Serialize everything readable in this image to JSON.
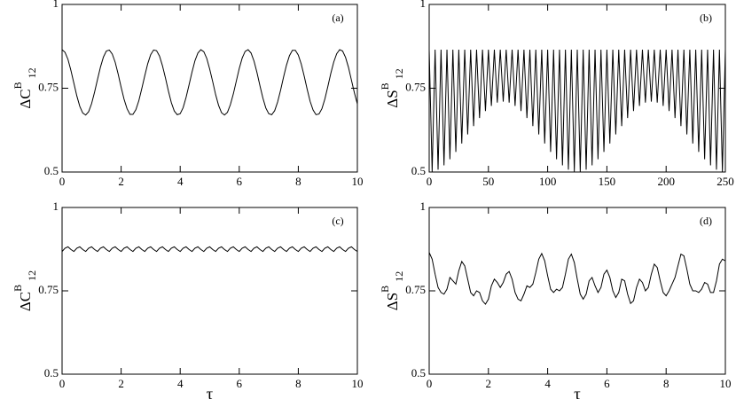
{
  "chart_data": [
    {
      "type": "line",
      "annotation": "(a)",
      "ylabel": {
        "base": "ΔC",
        "sup": "B",
        "sub": "12"
      },
      "color": "#000000",
      "xlim": [
        0,
        10
      ],
      "ylim": [
        0.5,
        1
      ],
      "xticks": [
        0,
        2,
        4,
        6,
        8,
        10
      ],
      "yticks": [
        0.5,
        0.75,
        1
      ],
      "x": [
        0,
        0.1,
        0.2,
        0.3,
        0.4,
        0.5,
        0.6,
        0.7,
        0.8,
        0.9,
        1,
        1.1,
        1.2,
        1.3,
        1.4,
        1.5,
        1.6,
        1.7,
        1.8,
        1.9,
        2,
        2.1,
        2.2,
        2.3,
        2.4,
        2.5,
        2.6,
        2.7,
        2.8,
        2.9,
        3,
        3.1,
        3.2,
        3.3,
        3.4,
        3.5,
        3.6,
        3.7,
        3.8,
        3.9,
        4,
        4.1,
        4.2,
        4.3,
        4.4,
        4.5,
        4.6,
        4.7,
        4.8,
        4.9,
        5,
        5.1,
        5.2,
        5.3,
        5.4,
        5.5,
        5.6,
        5.7,
        5.8,
        5.9,
        6,
        6.1,
        6.2,
        6.3,
        6.4,
        6.5,
        6.6,
        6.7,
        6.8,
        6.9,
        7,
        7.1,
        7.2,
        7.3,
        7.4,
        7.5,
        7.6,
        7.7,
        7.8,
        7.9,
        8,
        8.1,
        8.2,
        8.3,
        8.4,
        8.5,
        8.6,
        8.7,
        8.8,
        8.9,
        9,
        9.1,
        9.2,
        9.3,
        9.4,
        9.5,
        9.6,
        9.7,
        9.8,
        9.9,
        10
      ],
      "values": [
        0.865,
        0.857,
        0.836,
        0.803,
        0.765,
        0.727,
        0.696,
        0.676,
        0.67,
        0.68,
        0.704,
        0.738,
        0.776,
        0.813,
        0.843,
        0.861,
        0.864,
        0.852,
        0.827,
        0.792,
        0.753,
        0.717,
        0.689,
        0.672,
        0.672,
        0.686,
        0.713,
        0.749,
        0.787,
        0.823,
        0.85,
        0.864,
        0.862,
        0.846,
        0.817,
        0.781,
        0.742,
        0.707,
        0.682,
        0.671,
        0.674,
        0.692,
        0.723,
        0.76,
        0.798,
        0.832,
        0.855,
        0.865,
        0.859,
        0.839,
        0.807,
        0.77,
        0.731,
        0.699,
        0.677,
        0.67,
        0.678,
        0.701,
        0.733,
        0.771,
        0.809,
        0.84,
        0.86,
        0.865,
        0.855,
        0.831,
        0.797,
        0.758,
        0.721,
        0.691,
        0.674,
        0.671,
        0.683,
        0.709,
        0.744,
        0.783,
        0.819,
        0.847,
        0.863,
        0.863,
        0.849,
        0.822,
        0.786,
        0.747,
        0.711,
        0.685,
        0.671,
        0.673,
        0.689,
        0.718,
        0.755,
        0.794,
        0.828,
        0.853,
        0.865,
        0.861,
        0.842,
        0.812,
        0.774,
        0.736,
        0.703
      ]
    },
    {
      "type": "line",
      "annotation": "(b)",
      "ylabel": {
        "base": "ΔS",
        "sup": "B",
        "sub": "12"
      },
      "color": "#000000",
      "xlim": [
        0,
        250
      ],
      "ylim": [
        0.5,
        1
      ],
      "xticks": [
        0,
        50,
        100,
        150,
        200,
        250
      ],
      "yticks": [
        0.5,
        0.75,
        1
      ],
      "x": [
        0,
        2.5,
        5,
        7.5,
        10,
        12.5,
        15,
        17.5,
        20,
        22.5,
        25,
        27.5,
        30,
        32.5,
        35,
        37.5,
        40,
        42.5,
        45,
        47.5,
        50,
        52.5,
        55,
        57.5,
        60,
        62.5,
        65,
        67.5,
        70,
        72.5,
        75,
        77.5,
        80,
        82.5,
        85,
        87.5,
        90,
        92.5,
        95,
        97.5,
        100,
        102.5,
        105,
        107.5,
        110,
        112.5,
        115,
        117.5,
        120,
        122.5,
        125,
        127.5,
        130,
        132.5,
        135,
        137.5,
        140,
        142.5,
        145,
        147.5,
        150,
        152.5,
        155,
        157.5,
        160,
        162.5,
        165,
        167.5,
        170,
        172.5,
        175,
        177.5,
        180,
        182.5,
        185,
        187.5,
        190,
        192.5,
        195,
        197.5,
        200,
        202.5,
        205,
        207.5,
        210,
        212.5,
        215,
        217.5,
        220,
        222.5,
        225,
        227.5,
        230,
        232.5,
        235,
        237.5,
        240,
        242.5,
        245,
        247.5,
        250
      ],
      "values": [
        0.865,
        0.501,
        0.865,
        0.507,
        0.865,
        0.52,
        0.865,
        0.538,
        0.865,
        0.56,
        0.865,
        0.585,
        0.865,
        0.612,
        0.865,
        0.637,
        0.865,
        0.661,
        0.865,
        0.682,
        0.865,
        0.697,
        0.865,
        0.707,
        0.865,
        0.71,
        0.865,
        0.707,
        0.865,
        0.697,
        0.865,
        0.682,
        0.865,
        0.661,
        0.865,
        0.637,
        0.865,
        0.612,
        0.865,
        0.585,
        0.865,
        0.56,
        0.865,
        0.538,
        0.865,
        0.52,
        0.865,
        0.507,
        0.865,
        0.501,
        0.865,
        0.501,
        0.865,
        0.507,
        0.865,
        0.52,
        0.865,
        0.538,
        0.865,
        0.56,
        0.865,
        0.585,
        0.865,
        0.612,
        0.865,
        0.637,
        0.865,
        0.661,
        0.865,
        0.682,
        0.865,
        0.697,
        0.865,
        0.707,
        0.865,
        0.71,
        0.865,
        0.707,
        0.865,
        0.697,
        0.865,
        0.682,
        0.865,
        0.661,
        0.865,
        0.637,
        0.865,
        0.612,
        0.865,
        0.585,
        0.865,
        0.56,
        0.865,
        0.538,
        0.865,
        0.52,
        0.865,
        0.507,
        0.865,
        0.501,
        0.865
      ]
    },
    {
      "type": "line",
      "annotation": "(c)",
      "ylabel": {
        "base": "ΔC",
        "sup": "B",
        "sub": "12"
      },
      "xlabel": "τ",
      "color": "#000000",
      "xlim": [
        0,
        10
      ],
      "ylim": [
        0.5,
        1
      ],
      "xticks": [
        0,
        2,
        4,
        6,
        8,
        10
      ],
      "yticks": [
        0.5,
        0.75,
        1
      ],
      "x": [
        0,
        0.1,
        0.2,
        0.3,
        0.4,
        0.5,
        0.6,
        0.7,
        0.8,
        0.9,
        1,
        1.1,
        1.2,
        1.3,
        1.4,
        1.5,
        1.6,
        1.7,
        1.8,
        1.9,
        2,
        2.1,
        2.2,
        2.3,
        2.4,
        2.5,
        2.6,
        2.7,
        2.8,
        2.9,
        3,
        3.1,
        3.2,
        3.3,
        3.4,
        3.5,
        3.6,
        3.7,
        3.8,
        3.9,
        4,
        4.1,
        4.2,
        4.3,
        4.4,
        4.5,
        4.6,
        4.7,
        4.8,
        4.9,
        5,
        5.1,
        5.2,
        5.3,
        5.4,
        5.5,
        5.6,
        5.7,
        5.8,
        5.9,
        6,
        6.1,
        6.2,
        6.3,
        6.4,
        6.5,
        6.6,
        6.7,
        6.8,
        6.9,
        7,
        7.1,
        7.2,
        7.3,
        7.4,
        7.5,
        7.6,
        7.7,
        7.8,
        7.9,
        8,
        8.1,
        8.2,
        8.3,
        8.4,
        8.5,
        8.6,
        8.7,
        8.8,
        8.9,
        9,
        9.1,
        9.2,
        9.3,
        9.4,
        9.5,
        9.6,
        9.7,
        9.8,
        9.9,
        10
      ],
      "values": [
        0.868,
        0.878,
        0.882,
        0.874,
        0.868,
        0.878,
        0.882,
        0.874,
        0.868,
        0.878,
        0.882,
        0.874,
        0.868,
        0.878,
        0.882,
        0.874,
        0.868,
        0.878,
        0.882,
        0.874,
        0.868,
        0.878,
        0.882,
        0.874,
        0.868,
        0.878,
        0.882,
        0.874,
        0.868,
        0.878,
        0.882,
        0.874,
        0.868,
        0.878,
        0.882,
        0.874,
        0.868,
        0.878,
        0.882,
        0.874,
        0.868,
        0.878,
        0.882,
        0.874,
        0.868,
        0.878,
        0.882,
        0.874,
        0.868,
        0.878,
        0.882,
        0.874,
        0.868,
        0.878,
        0.882,
        0.874,
        0.868,
        0.878,
        0.882,
        0.874,
        0.868,
        0.878,
        0.882,
        0.874,
        0.868,
        0.878,
        0.882,
        0.874,
        0.868,
        0.878,
        0.882,
        0.874,
        0.868,
        0.878,
        0.882,
        0.874,
        0.868,
        0.878,
        0.882,
        0.874,
        0.868,
        0.878,
        0.882,
        0.874,
        0.868,
        0.878,
        0.882,
        0.874,
        0.868,
        0.878,
        0.882,
        0.874,
        0.868,
        0.878,
        0.882,
        0.874,
        0.868,
        0.878,
        0.882,
        0.874,
        0.868
      ]
    },
    {
      "type": "line",
      "annotation": "(d)",
      "ylabel": {
        "base": "ΔS",
        "sup": "B",
        "sub": "12"
      },
      "xlabel": "τ",
      "color": "#000000",
      "xlim": [
        0,
        10
      ],
      "ylim": [
        0.5,
        1
      ],
      "xticks": [
        0,
        2,
        4,
        6,
        8,
        10
      ],
      "yticks": [
        0.5,
        0.75,
        1
      ],
      "x": [
        0,
        0.1,
        0.2,
        0.3,
        0.4,
        0.5,
        0.6,
        0.7,
        0.8,
        0.9,
        1,
        1.1,
        1.2,
        1.3,
        1.4,
        1.5,
        1.6,
        1.7,
        1.8,
        1.9,
        2,
        2.1,
        2.2,
        2.3,
        2.4,
        2.5,
        2.6,
        2.7,
        2.8,
        2.9,
        3,
        3.1,
        3.2,
        3.3,
        3.4,
        3.5,
        3.6,
        3.7,
        3.8,
        3.9,
        4,
        4.1,
        4.2,
        4.3,
        4.4,
        4.5,
        4.6,
        4.7,
        4.8,
        4.9,
        5,
        5.1,
        5.2,
        5.3,
        5.4,
        5.5,
        5.6,
        5.7,
        5.8,
        5.9,
        6,
        6.1,
        6.2,
        6.3,
        6.4,
        6.5,
        6.6,
        6.7,
        6.8,
        6.9,
        7,
        7.1,
        7.2,
        7.3,
        7.4,
        7.5,
        7.6,
        7.7,
        7.8,
        7.9,
        8,
        8.1,
        8.2,
        8.3,
        8.4,
        8.5,
        8.6,
        8.7,
        8.8,
        8.9,
        9,
        9.1,
        9.2,
        9.3,
        9.4,
        9.5,
        9.6,
        9.7,
        9.8,
        9.9,
        10
      ],
      "values": [
        0.865,
        0.845,
        0.8,
        0.76,
        0.745,
        0.74,
        0.755,
        0.79,
        0.78,
        0.77,
        0.81,
        0.838,
        0.825,
        0.785,
        0.745,
        0.735,
        0.75,
        0.745,
        0.72,
        0.71,
        0.725,
        0.765,
        0.785,
        0.775,
        0.76,
        0.775,
        0.8,
        0.808,
        0.785,
        0.745,
        0.725,
        0.72,
        0.74,
        0.765,
        0.76,
        0.77,
        0.805,
        0.845,
        0.862,
        0.84,
        0.795,
        0.755,
        0.745,
        0.755,
        0.75,
        0.76,
        0.8,
        0.845,
        0.86,
        0.835,
        0.785,
        0.74,
        0.725,
        0.74,
        0.78,
        0.79,
        0.765,
        0.745,
        0.76,
        0.8,
        0.812,
        0.79,
        0.75,
        0.73,
        0.745,
        0.785,
        0.78,
        0.74,
        0.712,
        0.72,
        0.76,
        0.785,
        0.775,
        0.75,
        0.76,
        0.8,
        0.83,
        0.82,
        0.78,
        0.745,
        0.735,
        0.75,
        0.77,
        0.79,
        0.825,
        0.86,
        0.855,
        0.815,
        0.77,
        0.75,
        0.75,
        0.745,
        0.755,
        0.775,
        0.77,
        0.745,
        0.745,
        0.78,
        0.83,
        0.845,
        0.84
      ]
    }
  ]
}
